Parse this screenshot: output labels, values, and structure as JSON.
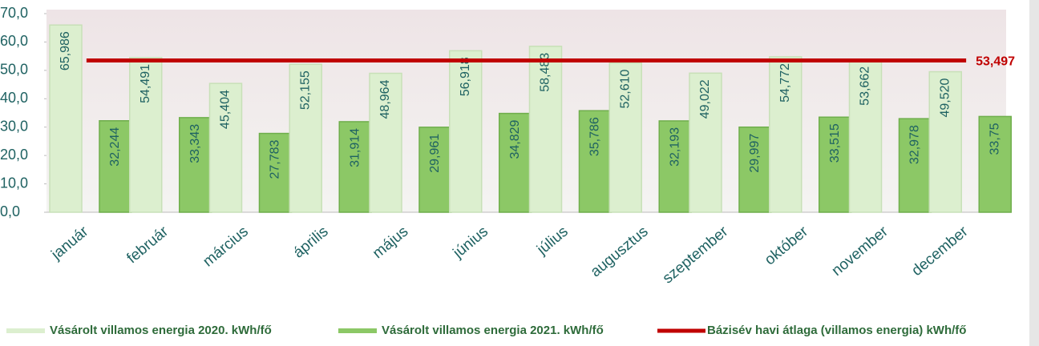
{
  "chart_data": {
    "type": "bar",
    "categories": [
      "január",
      "február",
      "március",
      "április",
      "május",
      "június",
      "július",
      "augusztus",
      "szeptember",
      "október",
      "november",
      "december"
    ],
    "series": [
      {
        "name": "Vásárolt villamos energia 2020. kWh/fő",
        "color": "#dcefcf",
        "values": [
          65.986,
          54.491,
          45.404,
          52.155,
          48.964,
          56.918,
          58.483,
          52.61,
          49.022,
          54.772,
          53.662,
          49.52
        ],
        "value_labels": [
          "65,986",
          "54,491",
          "45,404",
          "52,155",
          "48,964",
          "56,918",
          "58,483",
          "52,610",
          "49,022",
          "54,772",
          "53,662",
          "49,520"
        ]
      },
      {
        "name": "Vásárolt villamos energia 2021. kWh/fő",
        "color": "#8cc866",
        "values": [
          32.244,
          33.343,
          27.783,
          31.914,
          29.961,
          34.829,
          35.786,
          32.193,
          29.997,
          33.515,
          32.978,
          33.75
        ],
        "value_labels": [
          "32,244",
          "33,343",
          "27,783",
          "31,914",
          "29,961",
          "34,829",
          "35,786",
          "32,193",
          "29,997",
          "33,515",
          "32,978",
          "33,75"
        ]
      },
      {
        "name": "Bázisév havi átlaga (villamos energia) kWh/fő",
        "color": "#c00000",
        "type": "line",
        "values": [
          53.497,
          53.497,
          53.497,
          53.497,
          53.497,
          53.497,
          53.497,
          53.497,
          53.497,
          53.497,
          53.497,
          53.497
        ],
        "value_labels": [
          null,
          null,
          null,
          null,
          null,
          null,
          null,
          null,
          null,
          null,
          null,
          "53,497"
        ]
      }
    ],
    "ylim": [
      0,
      70
    ],
    "yticks": [
      {
        "value": 0,
        "label": "0,0"
      },
      {
        "value": 10,
        "label": "10,0"
      },
      {
        "value": 20,
        "label": "20,0"
      },
      {
        "value": 30,
        "label": "30,0"
      },
      {
        "value": 40,
        "label": "40,0"
      },
      {
        "value": 50,
        "label": "50,0"
      },
      {
        "value": 60,
        "label": "60,0"
      },
      {
        "value": 70,
        "label": "70,0"
      }
    ],
    "grid": false,
    "legend": "bottom"
  }
}
